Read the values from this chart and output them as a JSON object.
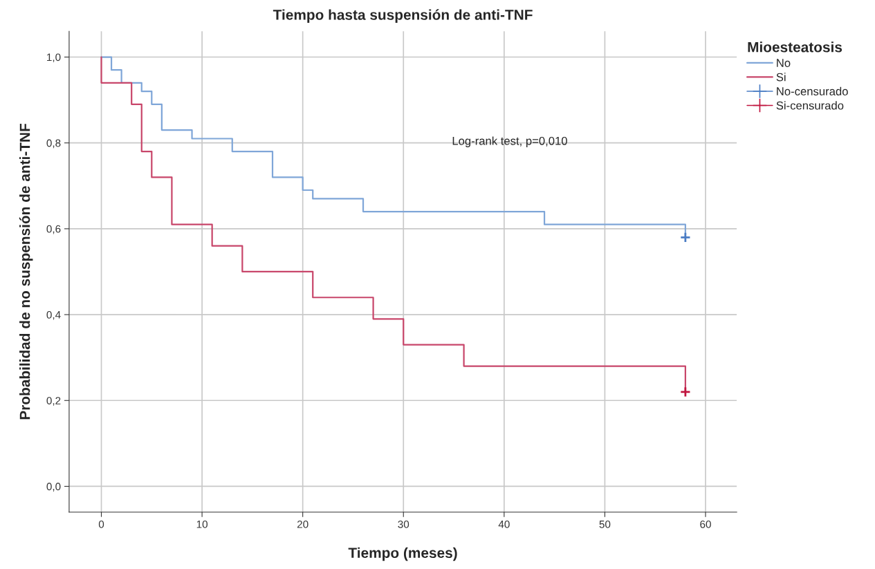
{
  "chart_data": {
    "type": "step",
    "title": "Tiempo hasta suspensión de anti-TNF",
    "xlabel": "Tiempo (meses)",
    "ylabel": "Probabilidad de no suspensión de anti-TNF",
    "legend_title": "Mioesteatosis",
    "series": [
      {
        "name": "No",
        "color": "#7fa6d8",
        "x": [
          0,
          1,
          2,
          4,
          5,
          6,
          9,
          13,
          17,
          20,
          21,
          26,
          44,
          58
        ],
        "values": [
          1.0,
          0.97,
          0.94,
          0.92,
          0.89,
          0.83,
          0.81,
          0.78,
          0.72,
          0.69,
          0.67,
          0.64,
          0.61,
          0.58
        ]
      },
      {
        "name": "Si",
        "color": "#c8466a",
        "x": [
          0,
          0,
          3,
          4,
          5,
          7,
          11,
          14,
          21,
          27,
          30,
          36,
          58
        ],
        "values": [
          1.0,
          0.94,
          0.89,
          0.78,
          0.72,
          0.61,
          0.56,
          0.5,
          0.44,
          0.39,
          0.33,
          0.28,
          0.22
        ]
      },
      {
        "name": "No-censurado",
        "type": "scatter",
        "marker": "cross",
        "color": "#4a7cc4",
        "x": [
          58
        ],
        "values": [
          0.58
        ]
      },
      {
        "name": "Si-censurado",
        "type": "scatter",
        "marker": "cross",
        "color": "#c0143e",
        "x": [
          58
        ],
        "values": [
          0.22
        ]
      }
    ],
    "xlim": [
      -3.2,
      63.1
    ],
    "ylim": [
      -0.06,
      1.06
    ],
    "xticks": [
      0,
      10,
      20,
      30,
      40,
      50,
      60
    ],
    "yticks": [
      {
        "value": 0,
        "label": "0,0"
      },
      {
        "value": 0.2,
        "label": "0,2"
      },
      {
        "value": 0.4,
        "label": "0,4"
      },
      {
        "value": 0.6,
        "label": "0,6"
      },
      {
        "value": 0.8,
        "label": "0,8"
      },
      {
        "value": 1.0,
        "label": "1,0"
      }
    ],
    "grid": true,
    "legend": "right",
    "annotations": [
      "Log-rank test, p=0,010"
    ]
  }
}
